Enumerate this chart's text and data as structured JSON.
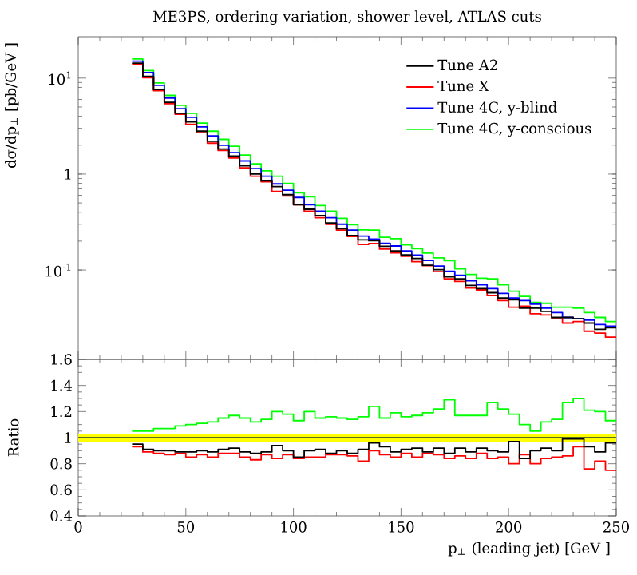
{
  "chart_data": [
    {
      "type": "histogram",
      "title": "ME3PS, ordering variation, shower level, ATLAS cuts",
      "ylabel": "dσ/dp$_{⊥}$ [pb/GeV ]",
      "log": "y",
      "legend": "top right",
      "tick_labels": "y",
      "xlim": [
        0,
        250
      ],
      "xticks": [
        0,
        50,
        100,
        150,
        200,
        250
      ],
      "ylim": [
        0.0117,
        27
      ],
      "yticks": [
        {
          "value": 0.1,
          "label": "10$^{-1}$"
        },
        {
          "value": 1,
          "label": "1"
        },
        {
          "value": 10,
          "label": "10$^{1}$"
        }
      ],
      "bins": [
        25,
        30,
        35,
        40,
        45,
        50,
        55,
        60,
        65,
        70,
        75,
        80,
        85,
        90,
        95,
        100,
        105,
        110,
        115,
        120,
        125,
        130,
        135,
        140,
        145,
        150,
        155,
        160,
        165,
        170,
        175,
        180,
        185,
        190,
        195,
        200,
        205,
        210,
        215,
        220,
        225,
        230,
        235,
        240,
        245,
        250
      ],
      "series": [
        {
          "name": "Tune A2",
          "color": "#000000",
          "values": [
            14.3,
            10.4,
            7.6,
            5.6,
            4.3,
            3.5,
            2.8,
            2.2,
            1.82,
            1.54,
            1.22,
            1.0,
            0.85,
            0.74,
            0.61,
            0.48,
            0.43,
            0.37,
            0.31,
            0.27,
            0.229,
            0.206,
            0.202,
            0.177,
            0.158,
            0.144,
            0.132,
            0.112,
            0.101,
            0.085,
            0.081,
            0.069,
            0.064,
            0.058,
            0.051,
            0.049,
            0.04,
            0.04,
            0.037,
            0.032,
            0.032,
            0.031,
            0.028,
            0.024,
            0.025
          ]
        },
        {
          "name": "Tune X",
          "color": "#ff0000",
          "values": [
            14.0,
            10.1,
            7.4,
            5.4,
            4.2,
            3.3,
            2.7,
            2.1,
            1.76,
            1.47,
            1.16,
            0.95,
            0.83,
            0.66,
            0.59,
            0.48,
            0.41,
            0.35,
            0.3,
            0.26,
            0.224,
            0.185,
            0.189,
            0.165,
            0.151,
            0.139,
            0.122,
            0.111,
            0.096,
            0.081,
            0.076,
            0.065,
            0.062,
            0.054,
            0.048,
            0.041,
            0.042,
            0.035,
            0.034,
            0.031,
            0.028,
            0.029,
            0.023,
            0.022,
            0.02
          ]
        },
        {
          "name": "Tune 4C, y-blind",
          "color": "#0000ff",
          "values": [
            15.0,
            11.4,
            8.4,
            6.2,
            4.8,
            3.9,
            3.1,
            2.5,
            2.0,
            1.67,
            1.37,
            1.14,
            0.95,
            0.79,
            0.68,
            0.57,
            0.48,
            0.41,
            0.35,
            0.3,
            0.26,
            0.226,
            0.21,
            0.19,
            0.178,
            0.158,
            0.143,
            0.126,
            0.11,
            0.097,
            0.088,
            0.077,
            0.07,
            0.064,
            0.057,
            0.051,
            0.048,
            0.044,
            0.04,
            0.036,
            0.032,
            0.031,
            0.03,
            0.027,
            0.026
          ]
        },
        {
          "name": "Tune 4C, y-conscious",
          "color": "#00ff00",
          "values": [
            15.8,
            12.0,
            8.9,
            6.6,
            5.2,
            4.3,
            3.4,
            2.8,
            2.3,
            1.95,
            1.58,
            1.28,
            1.08,
            0.95,
            0.8,
            0.64,
            0.58,
            0.47,
            0.41,
            0.345,
            0.296,
            0.262,
            0.26,
            0.219,
            0.212,
            0.183,
            0.167,
            0.15,
            0.134,
            0.125,
            0.103,
            0.09,
            0.082,
            0.081,
            0.07,
            0.06,
            0.053,
            0.046,
            0.045,
            0.041,
            0.041,
            0.04,
            0.036,
            0.032,
            0.029
          ]
        }
      ]
    },
    {
      "type": "histogram",
      "xlabel": "p$_{⊥}$ (leading jet) [GeV ]",
      "ylabel": "Ratio",
      "xlim": [
        0,
        250
      ],
      "xticks": [
        0,
        50,
        100,
        150,
        200,
        250
      ],
      "ylim": [
        0.4,
        1.6
      ],
      "yticks": [
        0.4,
        0.6,
        0.8,
        1,
        1.2,
        1.4,
        1.6
      ],
      "bands": [
        {
          "axis": "y",
          "from": 0.97,
          "to": 1.03,
          "color": "#ffff00"
        }
      ],
      "ref_lines": [
        {
          "axis": "y",
          "value": 1,
          "color": "#5a6e1e"
        }
      ],
      "bins": [
        25,
        30,
        35,
        40,
        45,
        50,
        55,
        60,
        65,
        70,
        75,
        80,
        85,
        90,
        95,
        100,
        105,
        110,
        115,
        120,
        125,
        130,
        135,
        140,
        145,
        150,
        155,
        160,
        165,
        170,
        175,
        180,
        185,
        190,
        195,
        200,
        205,
        210,
        215,
        220,
        225,
        230,
        235,
        240,
        245,
        250
      ],
      "series": [
        {
          "color": "#000000",
          "values": [
            0.95,
            0.91,
            0.9,
            0.9,
            0.89,
            0.89,
            0.9,
            0.89,
            0.91,
            0.92,
            0.89,
            0.88,
            0.89,
            0.94,
            0.9,
            0.85,
            0.9,
            0.91,
            0.88,
            0.9,
            0.88,
            0.91,
            0.96,
            0.93,
            0.89,
            0.91,
            0.92,
            0.89,
            0.92,
            0.88,
            0.92,
            0.89,
            0.92,
            0.9,
            0.89,
            0.97,
            0.84,
            0.9,
            0.92,
            0.9,
            0.99,
            0.99,
            0.93,
            0.89,
            0.96
          ]
        },
        {
          "color": "#ff0000",
          "values": [
            0.93,
            0.89,
            0.88,
            0.87,
            0.88,
            0.85,
            0.87,
            0.85,
            0.88,
            0.88,
            0.85,
            0.83,
            0.87,
            0.84,
            0.87,
            0.84,
            0.85,
            0.85,
            0.87,
            0.87,
            0.86,
            0.82,
            0.9,
            0.87,
            0.85,
            0.88,
            0.85,
            0.88,
            0.87,
            0.84,
            0.86,
            0.84,
            0.88,
            0.84,
            0.85,
            0.8,
            0.87,
            0.8,
            0.84,
            0.85,
            0.86,
            0.93,
            0.76,
            0.82,
            0.75
          ]
        },
        {
          "color": "#00ff00",
          "values": [
            1.05,
            1.05,
            1.07,
            1.07,
            1.09,
            1.1,
            1.11,
            1.12,
            1.15,
            1.17,
            1.15,
            1.12,
            1.14,
            1.2,
            1.18,
            1.13,
            1.2,
            1.15,
            1.16,
            1.15,
            1.14,
            1.16,
            1.24,
            1.15,
            1.19,
            1.16,
            1.17,
            1.19,
            1.22,
            1.29,
            1.17,
            1.17,
            1.17,
            1.27,
            1.22,
            1.18,
            1.1,
            1.05,
            1.12,
            1.14,
            1.27,
            1.3,
            1.21,
            1.2,
            1.13
          ]
        }
      ]
    }
  ]
}
